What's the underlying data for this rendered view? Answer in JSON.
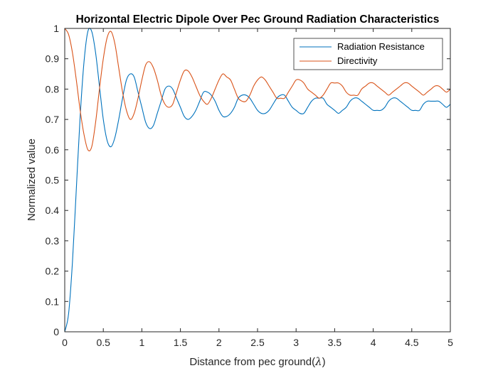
{
  "chart_data": {
    "type": "line",
    "title": "Horizontal Electric Dipole Over Pec Ground Radiation Characteristics",
    "xlabel": "Distance from pec ground(",
    "xlabel_symbol": "λ",
    "xlabel_suffix": ")",
    "ylabel": "Normalized value",
    "xlim": [
      0,
      5
    ],
    "ylim": [
      0,
      1
    ],
    "xticks": [
      "0",
      "0.5",
      "1",
      "1.5",
      "2",
      "2.5",
      "3",
      "3.5",
      "4",
      "4.5",
      "5"
    ],
    "yticks": [
      "0",
      "0.1",
      "0.2",
      "0.3",
      "0.4",
      "0.5",
      "0.6",
      "0.7",
      "0.8",
      "0.9",
      "1"
    ],
    "grid": false,
    "legend_position": "top-right",
    "series": [
      {
        "name": "Radiation Resistance",
        "color": "#0072BD",
        "x": [
          0,
          0.05,
          0.1,
          0.15,
          0.2,
          0.25,
          0.3,
          0.35,
          0.4,
          0.45,
          0.5,
          0.55,
          0.6,
          0.65,
          0.7,
          0.75,
          0.8,
          0.85,
          0.9,
          0.95,
          1.0,
          1.05,
          1.1,
          1.15,
          1.2,
          1.25,
          1.3,
          1.35,
          1.4,
          1.45,
          1.5,
          1.55,
          1.6,
          1.65,
          1.7,
          1.75,
          1.8,
          1.85,
          1.9,
          1.95,
          2.0,
          2.05,
          2.1,
          2.15,
          2.2,
          2.25,
          2.3,
          2.35,
          2.4,
          2.45,
          2.5,
          2.55,
          2.6,
          2.65,
          2.7,
          2.75,
          2.8,
          2.85,
          2.9,
          2.95,
          3.0,
          3.05,
          3.1,
          3.15,
          3.2,
          3.25,
          3.3,
          3.35,
          3.4,
          3.45,
          3.5,
          3.55,
          3.6,
          3.65,
          3.7,
          3.75,
          3.8,
          3.85,
          3.9,
          3.95,
          4.0,
          4.05,
          4.1,
          4.15,
          4.2,
          4.25,
          4.3,
          4.35,
          4.4,
          4.45,
          4.5,
          4.55,
          4.6,
          4.65,
          4.7,
          4.75,
          4.8,
          4.85,
          4.9,
          4.95,
          5.0
        ],
        "values": [
          0.0,
          0.06,
          0.23,
          0.47,
          0.71,
          0.89,
          0.99,
          0.99,
          0.92,
          0.81,
          0.7,
          0.63,
          0.61,
          0.64,
          0.7,
          0.77,
          0.83,
          0.85,
          0.84,
          0.79,
          0.74,
          0.69,
          0.67,
          0.68,
          0.72,
          0.76,
          0.8,
          0.81,
          0.8,
          0.77,
          0.74,
          0.71,
          0.7,
          0.71,
          0.73,
          0.76,
          0.79,
          0.79,
          0.78,
          0.76,
          0.73,
          0.71,
          0.71,
          0.72,
          0.74,
          0.77,
          0.78,
          0.78,
          0.77,
          0.75,
          0.73,
          0.72,
          0.72,
          0.73,
          0.75,
          0.77,
          0.78,
          0.78,
          0.76,
          0.74,
          0.73,
          0.72,
          0.72,
          0.74,
          0.76,
          0.77,
          0.77,
          0.77,
          0.75,
          0.74,
          0.73,
          0.72,
          0.73,
          0.74,
          0.76,
          0.77,
          0.77,
          0.76,
          0.75,
          0.74,
          0.73,
          0.73,
          0.73,
          0.74,
          0.76,
          0.77,
          0.77,
          0.76,
          0.75,
          0.74,
          0.73,
          0.73,
          0.73,
          0.75,
          0.76,
          0.76,
          0.76,
          0.76,
          0.75,
          0.74,
          0.75
        ]
      },
      {
        "name": "Directivity",
        "color": "#D95319",
        "x": [
          0,
          0.05,
          0.1,
          0.15,
          0.2,
          0.25,
          0.3,
          0.35,
          0.4,
          0.45,
          0.5,
          0.55,
          0.6,
          0.65,
          0.7,
          0.75,
          0.8,
          0.85,
          0.9,
          0.95,
          1.0,
          1.05,
          1.1,
          1.15,
          1.2,
          1.25,
          1.3,
          1.35,
          1.4,
          1.45,
          1.5,
          1.55,
          1.6,
          1.65,
          1.7,
          1.75,
          1.8,
          1.85,
          1.9,
          1.95,
          2.0,
          2.05,
          2.1,
          2.15,
          2.2,
          2.25,
          2.3,
          2.35,
          2.4,
          2.45,
          2.5,
          2.55,
          2.6,
          2.65,
          2.7,
          2.75,
          2.8,
          2.85,
          2.9,
          2.95,
          3.0,
          3.05,
          3.1,
          3.15,
          3.2,
          3.25,
          3.3,
          3.35,
          3.4,
          3.45,
          3.5,
          3.55,
          3.6,
          3.65,
          3.7,
          3.75,
          3.8,
          3.85,
          3.9,
          3.95,
          4.0,
          4.05,
          4.1,
          4.15,
          4.2,
          4.25,
          4.3,
          4.35,
          4.4,
          4.45,
          4.5,
          4.55,
          4.6,
          4.65,
          4.7,
          4.75,
          4.8,
          4.85,
          4.9,
          4.95,
          5.0
        ],
        "values": [
          1.0,
          0.98,
          0.92,
          0.83,
          0.73,
          0.65,
          0.6,
          0.61,
          0.69,
          0.8,
          0.9,
          0.97,
          0.99,
          0.95,
          0.87,
          0.79,
          0.73,
          0.7,
          0.72,
          0.77,
          0.83,
          0.88,
          0.89,
          0.87,
          0.83,
          0.78,
          0.75,
          0.74,
          0.75,
          0.79,
          0.83,
          0.86,
          0.86,
          0.84,
          0.81,
          0.78,
          0.76,
          0.75,
          0.77,
          0.8,
          0.83,
          0.85,
          0.84,
          0.83,
          0.8,
          0.77,
          0.76,
          0.76,
          0.78,
          0.81,
          0.83,
          0.84,
          0.83,
          0.81,
          0.79,
          0.77,
          0.77,
          0.77,
          0.79,
          0.81,
          0.83,
          0.83,
          0.82,
          0.8,
          0.79,
          0.78,
          0.77,
          0.78,
          0.8,
          0.82,
          0.82,
          0.82,
          0.81,
          0.79,
          0.78,
          0.78,
          0.78,
          0.8,
          0.81,
          0.82,
          0.82,
          0.81,
          0.8,
          0.79,
          0.78,
          0.79,
          0.8,
          0.81,
          0.82,
          0.82,
          0.81,
          0.8,
          0.79,
          0.78,
          0.79,
          0.8,
          0.81,
          0.81,
          0.8,
          0.79,
          0.8
        ]
      }
    ]
  }
}
